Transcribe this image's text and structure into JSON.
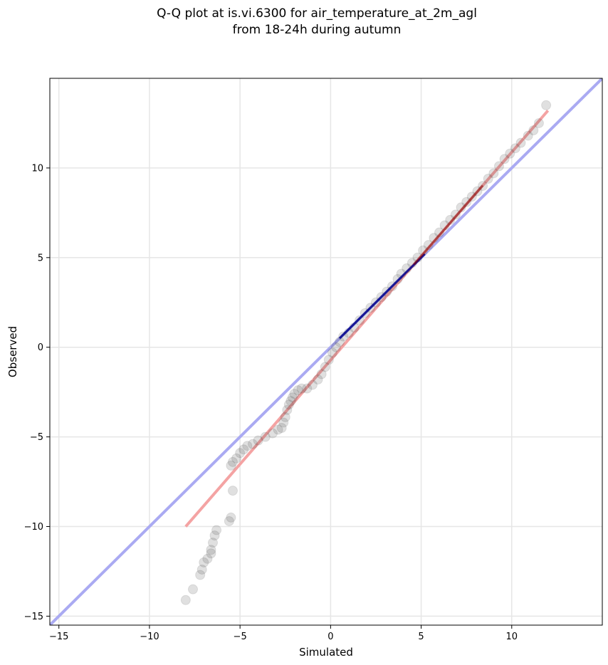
{
  "chart_data": {
    "type": "scatter",
    "title_line1": "Q-Q plot at is.vi.6300 for air_temperature_at_2m_agl",
    "title_line2": "from 18-24h during autumn",
    "xlabel": "Simulated",
    "ylabel": "Observed",
    "xlim": [
      -15.5,
      15
    ],
    "ylim": [
      -15.5,
      15
    ],
    "xticks": [
      -15,
      -10,
      -5,
      0,
      5,
      10
    ],
    "yticks": [
      -15,
      -10,
      -5,
      0,
      5,
      10
    ],
    "grid": true,
    "colors": {
      "points": "#3c3c3c",
      "identity_line": "#aaaaf2",
      "identity_line_dark": "#00008b",
      "fit_line": "#f4a3a3",
      "fit_line_dark": "#8b0000"
    },
    "identity_line": {
      "x": [
        -15.5,
        15
      ],
      "y": [
        -15.5,
        15
      ]
    },
    "fit_line": {
      "x": [
        -8,
        12
      ],
      "y": [
        -10,
        13.2
      ]
    },
    "series": [
      {
        "points": [
          [
            -8.0,
            -14.1
          ],
          [
            -7.6,
            -13.5
          ],
          [
            -7.2,
            -12.7
          ],
          [
            -7.1,
            -12.4
          ],
          [
            -7.0,
            -12.0
          ],
          [
            -6.8,
            -11.8
          ],
          [
            -6.6,
            -11.5
          ],
          [
            -6.6,
            -11.3
          ],
          [
            -6.5,
            -10.9
          ],
          [
            -6.4,
            -10.5
          ],
          [
            -6.3,
            -10.2
          ],
          [
            -5.6,
            -9.7
          ],
          [
            -5.5,
            -9.5
          ],
          [
            -5.4,
            -8.0
          ],
          [
            -5.5,
            -6.6
          ],
          [
            -5.4,
            -6.4
          ],
          [
            -5.2,
            -6.2
          ],
          [
            -5.0,
            -5.9
          ],
          [
            -4.8,
            -5.7
          ],
          [
            -4.6,
            -5.5
          ],
          [
            -4.3,
            -5.4
          ],
          [
            -4.0,
            -5.2
          ],
          [
            -3.6,
            -5.0
          ],
          [
            -3.2,
            -4.8
          ],
          [
            -2.9,
            -4.6
          ],
          [
            -2.7,
            -4.5
          ],
          [
            -2.6,
            -4.2
          ],
          [
            -2.5,
            -3.9
          ],
          [
            -2.4,
            -3.5
          ],
          [
            -2.3,
            -3.2
          ],
          [
            -2.2,
            -3.0
          ],
          [
            -2.1,
            -2.8
          ],
          [
            -2.0,
            -2.6
          ],
          [
            -1.8,
            -2.4
          ],
          [
            -1.6,
            -2.3
          ],
          [
            -1.3,
            -2.3
          ],
          [
            -1.0,
            -2.1
          ],
          [
            -0.7,
            -1.8
          ],
          [
            -0.5,
            -1.5
          ],
          [
            -0.3,
            -1.1
          ],
          [
            -0.1,
            -0.7
          ],
          [
            0.1,
            -0.3
          ],
          [
            0.3,
            0.0
          ],
          [
            0.5,
            0.3
          ],
          [
            0.7,
            0.6
          ],
          [
            1.0,
            0.8
          ],
          [
            1.3,
            1.1
          ],
          [
            1.6,
            1.5
          ],
          [
            1.9,
            1.9
          ],
          [
            2.2,
            2.2
          ],
          [
            2.5,
            2.5
          ],
          [
            2.8,
            2.8
          ],
          [
            3.1,
            3.1
          ],
          [
            3.4,
            3.4
          ],
          [
            3.7,
            3.8
          ],
          [
            3.9,
            4.1
          ],
          [
            4.2,
            4.4
          ],
          [
            4.5,
            4.7
          ],
          [
            4.8,
            5.0
          ],
          [
            5.1,
            5.4
          ],
          [
            5.4,
            5.7
          ],
          [
            5.7,
            6.1
          ],
          [
            6.0,
            6.4
          ],
          [
            6.3,
            6.8
          ],
          [
            6.6,
            7.1
          ],
          [
            6.9,
            7.4
          ],
          [
            7.2,
            7.8
          ],
          [
            7.5,
            8.1
          ],
          [
            7.8,
            8.4
          ],
          [
            8.1,
            8.7
          ],
          [
            8.4,
            9.0
          ],
          [
            8.7,
            9.4
          ],
          [
            9.0,
            9.7
          ],
          [
            9.3,
            10.1
          ],
          [
            9.6,
            10.5
          ],
          [
            9.9,
            10.8
          ],
          [
            10.2,
            11.1
          ],
          [
            10.5,
            11.4
          ],
          [
            10.9,
            11.8
          ],
          [
            11.2,
            12.1
          ],
          [
            11.5,
            12.5
          ],
          [
            11.9,
            13.5
          ]
        ]
      }
    ]
  }
}
